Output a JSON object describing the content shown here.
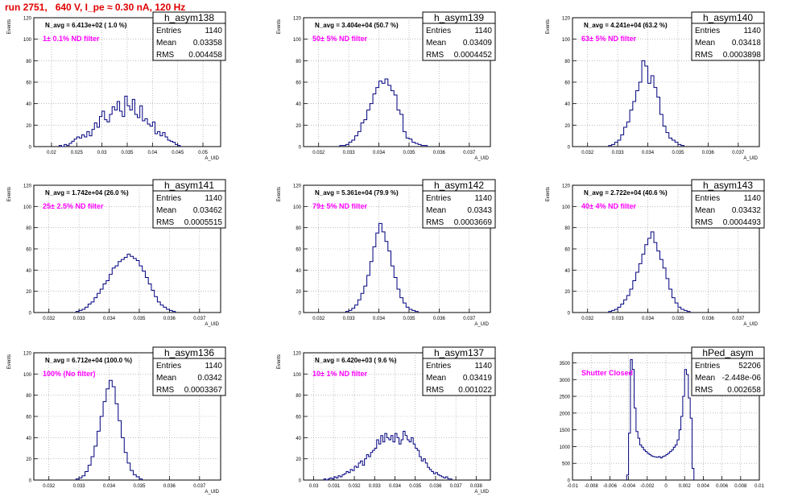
{
  "page_title": "run 2751,   640 V, I_pe ≈ 0.30 nA, 120 Hz",
  "colors": {
    "hist": "#00007f",
    "filter_text": "#ff00ff",
    "title": "#e00000",
    "grid": "#999999"
  },
  "stats_labels": {
    "entries": "Entries",
    "mean": "Mean",
    "rms": "RMS"
  },
  "chart_data": [
    {
      "type": "histogram",
      "name": "h_asym138",
      "navg": "N_avg = 6.413e+02 ( 1.0 %)",
      "filter": "1± 0.1% ND filter",
      "entries": "1140",
      "mean": "0.03358",
      "rms": "0.004458",
      "ylabel": "Events",
      "xlabel": "A_UID",
      "xlim": [
        0.0165,
        0.0535
      ],
      "ylim": [
        0,
        120
      ],
      "xticks": [
        "0.02",
        "0.025",
        "0.03",
        "0.035",
        "0.04",
        "0.045",
        "0.05"
      ],
      "yticks": [
        "0",
        "20",
        "40",
        "60",
        "80",
        "100",
        "120"
      ],
      "bins": {
        "start": 0.0215,
        "width": 0.0005,
        "values": [
          1,
          0,
          2,
          1,
          3,
          5,
          7,
          9,
          8,
          11,
          9,
          14,
          10,
          16,
          22,
          18,
          28,
          33,
          25,
          23,
          30,
          37,
          34,
          42,
          33,
          28,
          47,
          38,
          34,
          44,
          30,
          27,
          38,
          24,
          26,
          21,
          19,
          23,
          12,
          14,
          10,
          13,
          9,
          6,
          5,
          4,
          2,
          1
        ]
      }
    },
    {
      "type": "histogram",
      "name": "h_asym139",
      "navg": "N_avg = 3.404e+04 (50.7 %)",
      "filter": "50± 5% ND filter",
      "entries": "1140",
      "mean": "0.03409",
      "rms": "0.0004452",
      "ylabel": "Events",
      "xlabel": "A_UID",
      "xlim": [
        0.0315,
        0.0377
      ],
      "ylim": [
        0,
        120
      ],
      "xticks": [
        "0.032",
        "0.033",
        "0.034",
        "0.035",
        "0.036",
        "0.037"
      ],
      "yticks": [
        "0",
        "20",
        "40",
        "60",
        "80",
        "100",
        "120"
      ],
      "bins": {
        "start": 0.0327,
        "width": 0.0001,
        "values": [
          1,
          1,
          2,
          4,
          6,
          10,
          14,
          22,
          25,
          34,
          40,
          49,
          55,
          61,
          59,
          63,
          57,
          52,
          48,
          34,
          30,
          14,
          8,
          7,
          4,
          3,
          2,
          1,
          1
        ]
      }
    },
    {
      "type": "histogram",
      "name": "h_asym140",
      "navg": "N_avg = 4.241e+04 (63.2 %)",
      "filter": "63± 5% ND filter",
      "entries": "1140",
      "mean": "0.03418",
      "rms": "0.0003898",
      "ylabel": "Events",
      "xlabel": "A_UID",
      "xlim": [
        0.0315,
        0.0377
      ],
      "ylim": [
        0,
        120
      ],
      "xticks": [
        "0.032",
        "0.033",
        "0.034",
        "0.035",
        "0.036",
        "0.037"
      ],
      "yticks": [
        "0",
        "20",
        "40",
        "60",
        "80",
        "100",
        "120"
      ],
      "bins": {
        "start": 0.0327,
        "width": 0.0001,
        "values": [
          1,
          2,
          4,
          6,
          11,
          18,
          23,
          34,
          42,
          52,
          60,
          80,
          75,
          59,
          66,
          55,
          46,
          30,
          19,
          13,
          8,
          6,
          4,
          2,
          1
        ]
      }
    },
    {
      "type": "histogram",
      "name": "h_asym141",
      "navg": "N_avg = 1.742e+04 (26.0 %)",
      "filter": "25± 2.5% ND filter",
      "entries": "1140",
      "mean": "0.03462",
      "rms": "0.0005515",
      "ylabel": "Events",
      "xlabel": "A_UID",
      "xlim": [
        0.0315,
        0.0377
      ],
      "ylim": [
        0,
        120
      ],
      "xticks": [
        "0.032",
        "0.033",
        "0.034",
        "0.035",
        "0.036",
        "0.037"
      ],
      "yticks": [
        "0",
        "20",
        "40",
        "60",
        "80",
        "100",
        "120"
      ],
      "bins": {
        "start": 0.0329,
        "width": 0.0001,
        "values": [
          1,
          2,
          3,
          5,
          8,
          10,
          14,
          18,
          22,
          27,
          30,
          36,
          42,
          44,
          48,
          50,
          52,
          55,
          53,
          51,
          49,
          44,
          39,
          33,
          27,
          21,
          15,
          10,
          7,
          5,
          3,
          2,
          1
        ]
      }
    },
    {
      "type": "histogram",
      "name": "h_asym142",
      "navg": "N_avg = 5.361e+04 (79.9 %)",
      "filter": "79± 5% ND filter",
      "entries": "1140",
      "mean": "0.0343",
      "rms": "0.0003669",
      "ylabel": "Events",
      "xlabel": "A_UID",
      "xlim": [
        0.0315,
        0.0377
      ],
      "ylim": [
        0,
        120
      ],
      "xticks": [
        "0.032",
        "0.033",
        "0.034",
        "0.035",
        "0.036",
        "0.037"
      ],
      "yticks": [
        "0",
        "20",
        "40",
        "60",
        "80",
        "100",
        "120"
      ],
      "bins": {
        "start": 0.0329,
        "width": 0.0001,
        "values": [
          1,
          2,
          4,
          7,
          12,
          18,
          25,
          35,
          48,
          62,
          75,
          84,
          76,
          67,
          58,
          44,
          33,
          22,
          14,
          9,
          5,
          3,
          2,
          1
        ]
      }
    },
    {
      "type": "histogram",
      "name": "h_asym143",
      "navg": "N_avg = 2.722e+04 (40.6 %)",
      "filter": "40± 4% ND filter",
      "entries": "1140",
      "mean": "0.03432",
      "rms": "0.0004493",
      "ylabel": "Events",
      "xlabel": "A_UID",
      "xlim": [
        0.0315,
        0.0377
      ],
      "ylim": [
        0,
        120
      ],
      "xticks": [
        "0.032",
        "0.033",
        "0.034",
        "0.035",
        "0.036",
        "0.037"
      ],
      "yticks": [
        "0",
        "20",
        "40",
        "60",
        "80",
        "100",
        "120"
      ],
      "bins": {
        "start": 0.0327,
        "width": 0.0001,
        "values": [
          1,
          2,
          3,
          5,
          8,
          12,
          16,
          22,
          30,
          38,
          46,
          55,
          64,
          70,
          76,
          66,
          58,
          50,
          42,
          32,
          22,
          14,
          9,
          5,
          3,
          2,
          1
        ]
      }
    },
    {
      "type": "histogram",
      "name": "h_asym136",
      "navg": "N_avg = 6.712e+04 (100.0 %)",
      "filter": "100% (No filter)",
      "entries": "1140",
      "mean": "0.0342",
      "rms": "0.0003367",
      "ylabel": "Events",
      "xlabel": "A_UID",
      "xlim": [
        0.0315,
        0.0377
      ],
      "ylim": [
        0,
        120
      ],
      "xticks": [
        "0.032",
        "0.033",
        "0.034",
        "0.035",
        "0.036",
        "0.037"
      ],
      "yticks": [
        "0",
        "20",
        "40",
        "60",
        "80",
        "100",
        "120"
      ],
      "bins": {
        "start": 0.0329,
        "width": 0.0001,
        "values": [
          1,
          2,
          4,
          8,
          14,
          22,
          32,
          46,
          60,
          74,
          86,
          94,
          88,
          72,
          56,
          40,
          26,
          16,
          9,
          5,
          3,
          1
        ]
      }
    },
    {
      "type": "histogram",
      "name": "h_asym137",
      "navg": "N_avg = 6.420e+03 ( 9.6 %)",
      "filter": "10± 1% ND filter",
      "entries": "1140",
      "mean": "0.03419",
      "rms": "0.001022",
      "ylabel": "Events",
      "xlabel": "A_UID",
      "xlim": [
        0.0295,
        0.0387
      ],
      "ylim": [
        0,
        120
      ],
      "xticks": [
        "0.03",
        "0.031",
        "0.032",
        "0.033",
        "0.034",
        "0.035",
        "0.036",
        "0.037",
        "0.038"
      ],
      "yticks": [
        "0",
        "20",
        "40",
        "60",
        "80",
        "100",
        "120"
      ],
      "bins": {
        "start": 0.0305,
        "width": 0.0001,
        "values": [
          1,
          0,
          1,
          2,
          1,
          3,
          2,
          4,
          3,
          5,
          6,
          8,
          7,
          10,
          9,
          13,
          12,
          16,
          18,
          14,
          20,
          24,
          22,
          26,
          28,
          30,
          38,
          34,
          42,
          36,
          44,
          40,
          38,
          42,
          36,
          44,
          40,
          34,
          38,
          46,
          42,
          38,
          36,
          40,
          34,
          30,
          28,
          22,
          18,
          20,
          16,
          12,
          10,
          8,
          6,
          7,
          5,
          4,
          3,
          2,
          3,
          1,
          1
        ]
      }
    },
    {
      "type": "histogram",
      "name": "hPed_asym",
      "navg": "",
      "filter": "Shutter Closed",
      "entries": "52206",
      "mean": "-2.448e-06",
      "rms": "0.002658",
      "ylabel": "",
      "xlabel": "",
      "xlim": [
        -0.01,
        0.01
      ],
      "ylim": [
        0,
        3800
      ],
      "xticks": [
        "-0.01",
        "-0.008",
        "-0.006",
        "-0.004",
        "-0.002",
        "0",
        "0.002",
        "0.004",
        "0.006",
        "0.008",
        "0.01"
      ],
      "yticks": [
        "0",
        "500",
        "1000",
        "1500",
        "2000",
        "2500",
        "3000",
        "3500"
      ],
      "bins": {
        "start": -0.0042,
        "width": 0.0002,
        "values": [
          150,
          1400,
          3600,
          3300,
          2150,
          1450,
          1250,
          1050,
          980,
          900,
          850,
          800,
          760,
          720,
          700,
          690,
          680,
          700,
          660,
          700,
          720,
          760,
          800,
          850,
          900,
          980,
          1050,
          1200,
          1500,
          1900,
          2500,
          3300,
          3150,
          2450,
          1850,
          350
        ]
      }
    }
  ]
}
